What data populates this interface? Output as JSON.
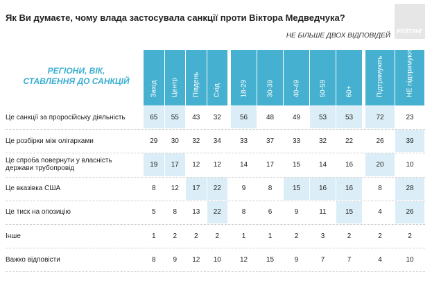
{
  "header": {
    "title": "Як Ви думаєте, чому влада застосувала санкції проти Віктора Медведчука?",
    "subtitle": "НЕ БІЛЬШЕ ДВОХ ВІДПОВІДЕЙ",
    "logo": "РЕЙТИНГ"
  },
  "table": {
    "corner_label": "РЕГІОНИ, ВІК, СТАВЛЕННЯ ДО САНКЦІЙ",
    "columns": [
      "Захід",
      "Центр",
      "Південь",
      "Схід",
      "18-29",
      "30-39",
      "40-49",
      "50-59",
      "60+",
      "Підтримують",
      "НЕ підтримують"
    ],
    "groups": [
      4,
      5,
      2
    ],
    "rows": [
      {
        "label": "Це санкції за проросійську діяльність",
        "values": [
          65,
          55,
          43,
          32,
          56,
          48,
          49,
          53,
          53,
          72,
          23
        ],
        "highlight": [
          0,
          1,
          4,
          7,
          8,
          9
        ]
      },
      {
        "label": "Це розбірки між олігархами",
        "values": [
          29,
          30,
          32,
          34,
          33,
          37,
          33,
          32,
          22,
          26,
          39
        ],
        "highlight": [
          10
        ]
      },
      {
        "label": "Це спроба повернути у власність держави трубопровід",
        "values": [
          19,
          17,
          12,
          12,
          14,
          17,
          15,
          14,
          16,
          20,
          10
        ],
        "highlight": [
          0,
          1,
          9
        ]
      },
      {
        "label": "Це вказівка США",
        "values": [
          8,
          12,
          17,
          22,
          9,
          8,
          15,
          16,
          16,
          8,
          28
        ],
        "highlight": [
          2,
          3,
          6,
          7,
          8,
          10
        ]
      },
      {
        "label": "Це тиск на опозицію",
        "values": [
          5,
          8,
          13,
          22,
          8,
          6,
          9,
          11,
          15,
          4,
          26
        ],
        "highlight": [
          3,
          8,
          10
        ]
      },
      {
        "label": "Інше",
        "values": [
          1,
          2,
          2,
          2,
          1,
          1,
          2,
          3,
          2,
          2,
          2
        ],
        "highlight": []
      },
      {
        "label": "Важко відповісти",
        "values": [
          8,
          9,
          12,
          10,
          12,
          15,
          9,
          7,
          7,
          4,
          10
        ],
        "highlight": []
      }
    ]
  }
}
